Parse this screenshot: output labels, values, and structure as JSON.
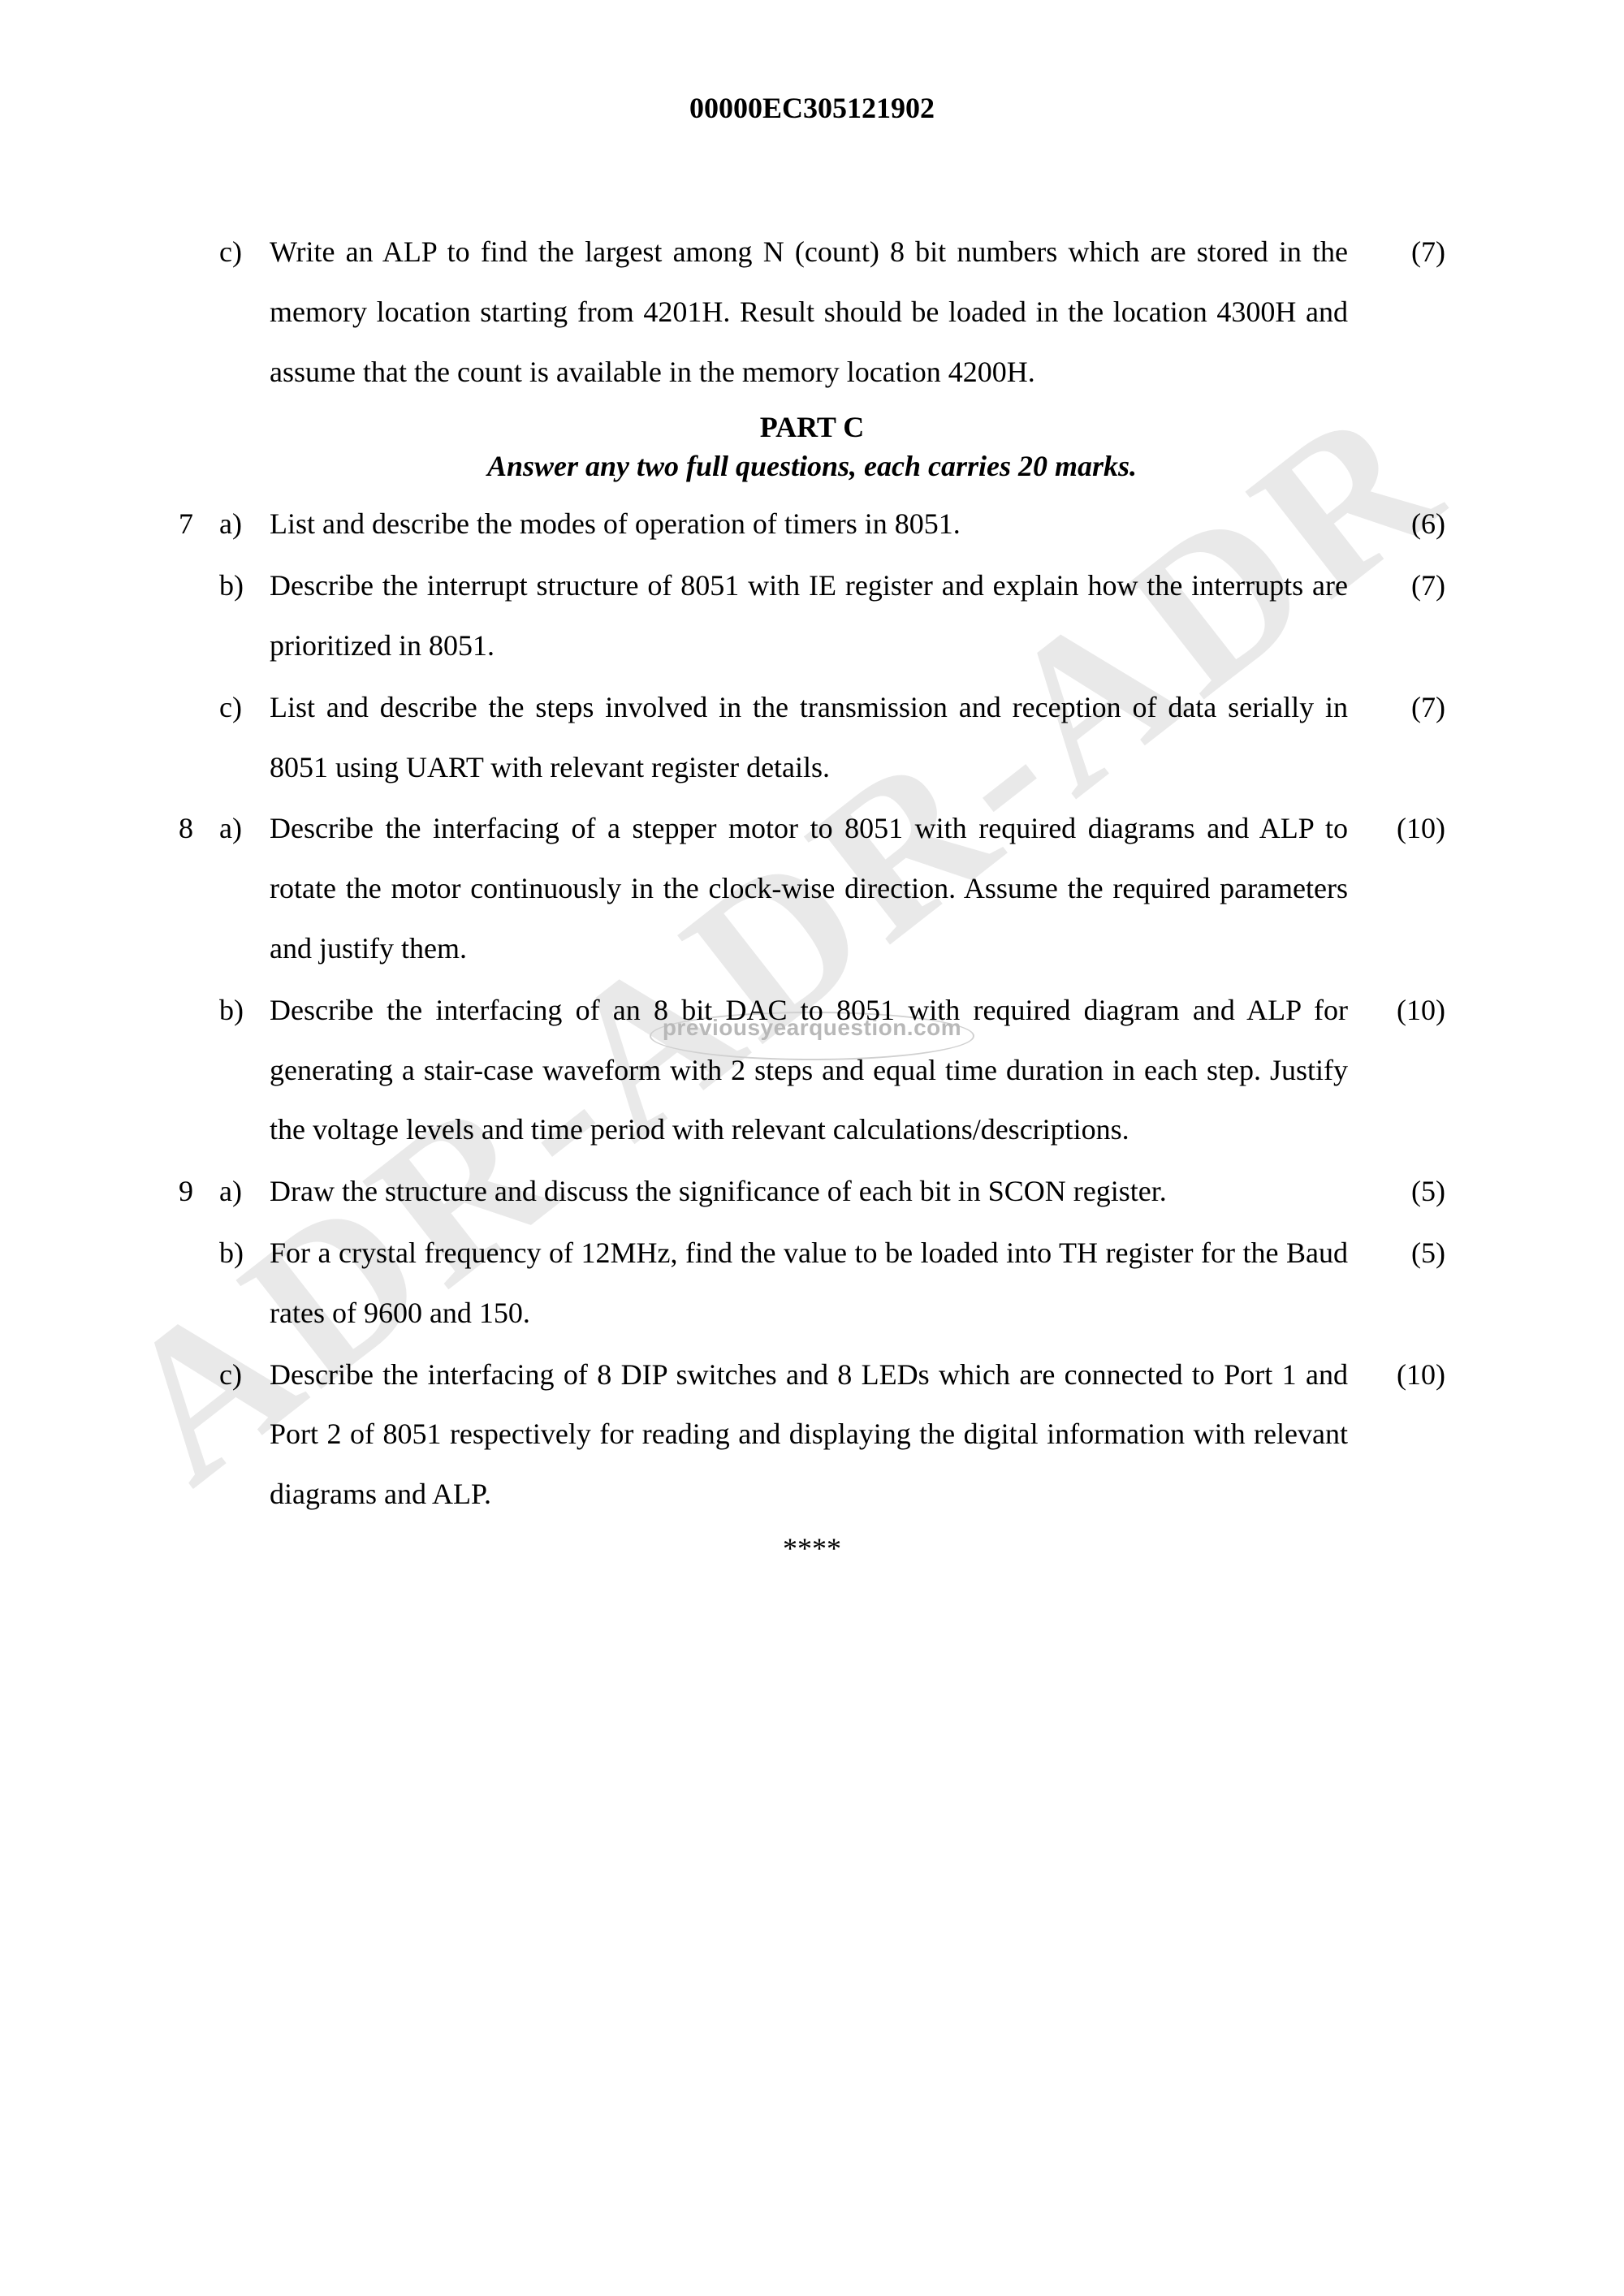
{
  "header": {
    "code": "00000EC305121902"
  },
  "watermark": {
    "big": "ADR-ADR-ADR",
    "small": "previousyearquestion.com"
  },
  "pre_questions": [
    {
      "qnum": "",
      "label": "c)",
      "text": "Write an ALP to find the largest among N (count)  8 bit numbers which are stored in the memory location starting from 4201H. Result should be loaded in the location 4300H and assume that the count is available in the memory location 4200H.",
      "marks": "(7)"
    }
  ],
  "part": {
    "title": "PART C",
    "instruction": "Answer any two full questions, each carries 20 marks."
  },
  "questions": [
    {
      "qnum": "7",
      "label": "a)",
      "text": "List and describe the modes of operation of timers in 8051.",
      "marks": "(6)"
    },
    {
      "qnum": "",
      "label": "b)",
      "text": "Describe the interrupt structure of 8051 with IE register and explain how the interrupts are prioritized in 8051.",
      "marks": "(7)"
    },
    {
      "qnum": "",
      "label": "c)",
      "text": "List and describe the steps involved in the transmission and reception of data serially in 8051 using UART with relevant register details.",
      "marks": "(7)"
    },
    {
      "qnum": "8",
      "label": "a)",
      "text": "Describe the interfacing of a stepper motor to 8051 with required diagrams and ALP to rotate the motor continuously in the clock-wise direction. Assume the required parameters and justify them.",
      "marks": "(10)"
    },
    {
      "qnum": "",
      "label": "b)",
      "text": "Describe the interfacing of an 8 bit DAC to 8051 with required diagram and ALP for generating a stair-case waveform with 2 steps and equal time duration in each step. Justify the voltage levels and time period with relevant calculations/descriptions.",
      "marks": "(10)"
    },
    {
      "qnum": "9",
      "label": "a)",
      "text": "Draw the structure and discuss the significance of each bit in SCON register.",
      "marks": "(5)"
    },
    {
      "qnum": "",
      "label": "b)",
      "text": "For a crystal frequency of 12MHz, find the value to be loaded into TH register for the Baud rates of 9600 and 150.",
      "marks": "(5)"
    },
    {
      "qnum": "",
      "label": "c)",
      "text": "Describe the interfacing of 8 DIP switches and 8 LEDs which are connected to Port 1 and Port 2 of 8051 respectively for reading and displaying the digital information with relevant diagrams and ALP.",
      "marks": "(10)"
    }
  ],
  "endmark": "****"
}
